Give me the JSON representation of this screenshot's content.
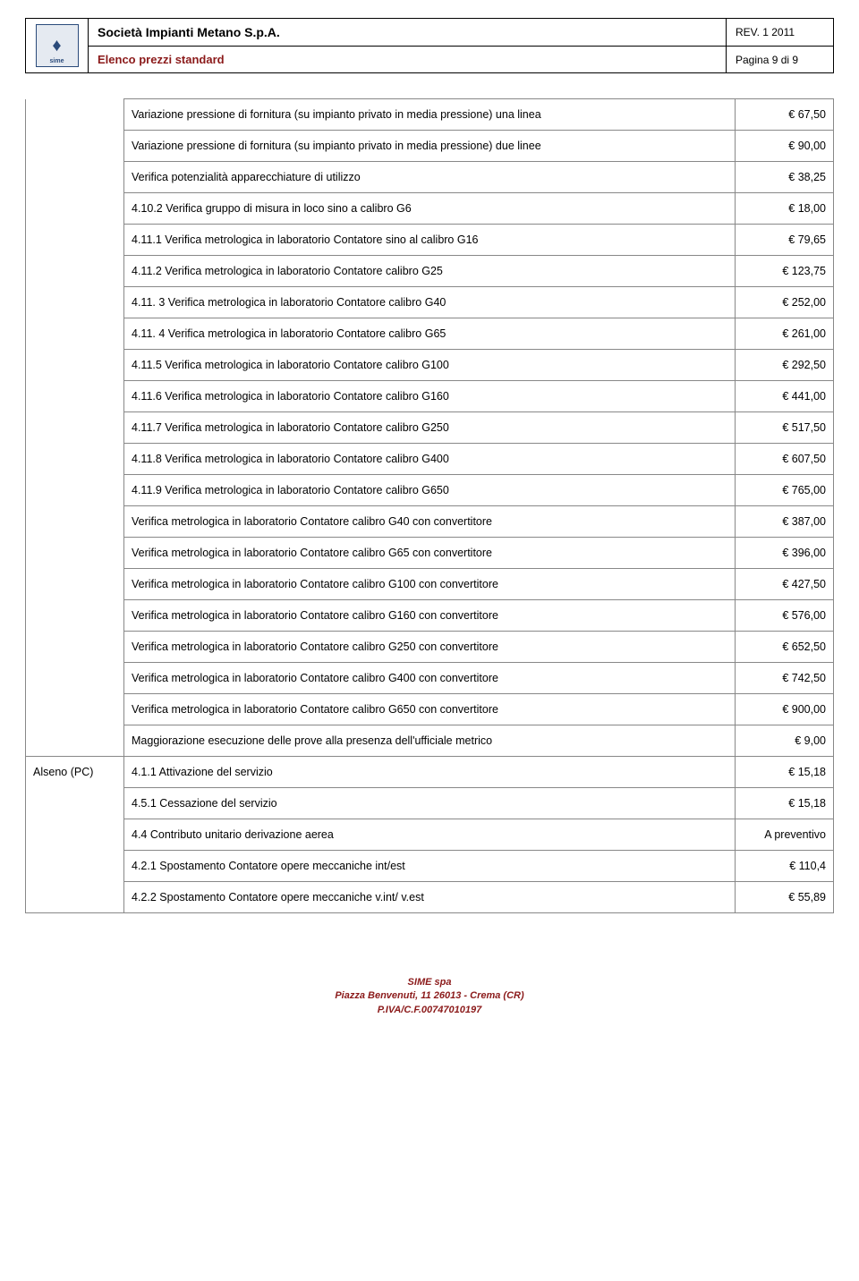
{
  "header": {
    "company": "Società Impianti Metano S.p.A.",
    "rev": "REV. 1 2011",
    "subtitle": "Elenco prezzi standard",
    "page": "Pagina 9 di 9",
    "logo_text": "sime"
  },
  "left_label": "Alseno (PC)",
  "rows": [
    {
      "desc": "Variazione pressione di fornitura (su impianto privato in media pressione) una linea",
      "price": "€ 67,50"
    },
    {
      "desc": "Variazione pressione di fornitura (su impianto privato in media pressione) due linee",
      "price": "€ 90,00"
    },
    {
      "desc": "Verifica potenzialità apparecchiature di utilizzo",
      "price": "€ 38,25"
    },
    {
      "desc": "4.10.2 Verifica gruppo di misura in loco sino a calibro G6",
      "price": "€ 18,00"
    },
    {
      "desc": "4.11.1 Verifica metrologica in laboratorio Contatore sino al calibro G16",
      "price": "€ 79,65"
    },
    {
      "desc": "4.11.2 Verifica metrologica in laboratorio Contatore calibro G25",
      "price": "€ 123,75"
    },
    {
      "desc": "4.11. 3 Verifica metrologica in laboratorio Contatore calibro G40",
      "price": "€ 252,00"
    },
    {
      "desc": "4.11. 4 Verifica metrologica in laboratorio Contatore calibro G65",
      "price": "€ 261,00"
    },
    {
      "desc": "4.11.5 Verifica metrologica in laboratorio Contatore calibro G100",
      "price": "€ 292,50"
    },
    {
      "desc": "4.11.6 Verifica metrologica in laboratorio Contatore calibro G160",
      "price": "€ 441,00"
    },
    {
      "desc": "4.11.7 Verifica metrologica in laboratorio Contatore calibro G250",
      "price": "€ 517,50"
    },
    {
      "desc": "4.11.8 Verifica metrologica in laboratorio Contatore calibro G400",
      "price": "€ 607,50"
    },
    {
      "desc": "4.11.9 Verifica metrologica in laboratorio Contatore calibro G650",
      "price": "€ 765,00"
    },
    {
      "desc": "Verifica metrologica in laboratorio Contatore calibro G40 con convertitore",
      "price": "€ 387,00"
    },
    {
      "desc": "Verifica metrologica in laboratorio Contatore calibro G65 con convertitore",
      "price": "€ 396,00"
    },
    {
      "desc": "Verifica metrologica in laboratorio Contatore calibro G100 con convertitore",
      "price": "€ 427,50"
    },
    {
      "desc": "Verifica metrologica in laboratorio Contatore calibro G160 con convertitore",
      "price": "€ 576,00"
    },
    {
      "desc": "Verifica metrologica in laboratorio Contatore calibro G250 con convertitore",
      "price": "€ 652,50"
    },
    {
      "desc": "Verifica metrologica in laboratorio Contatore calibro G400 con convertitore",
      "price": "€ 742,50"
    },
    {
      "desc": "Verifica metrologica in laboratorio Contatore calibro G650 con convertitore",
      "price": "€ 900,00"
    },
    {
      "desc": "Maggiorazione esecuzione delle prove alla presenza dell'ufficiale metrico",
      "price": "€ 9,00"
    },
    {
      "desc": "4.1.1 Attivazione del servizio",
      "price": "€  15,18",
      "section_start": true
    },
    {
      "desc": "4.5.1 Cessazione del servizio",
      "price": "€  15,18"
    },
    {
      "desc": "4.4 Contributo unitario derivazione aerea",
      "price": "A preventivo"
    },
    {
      "desc": "4.2.1 Spostamento Contatore opere meccaniche int/est",
      "price": "€  110,4"
    },
    {
      "desc": "4.2.2 Spostamento Contatore opere meccaniche v.int/ v.est",
      "price": "€  55,89"
    }
  ],
  "footer": {
    "line1": "SIME spa",
    "line2": "Piazza Benvenuti, 11 26013 -  Crema (CR)",
    "line3": "P.IVA/C.F.00747010197"
  }
}
